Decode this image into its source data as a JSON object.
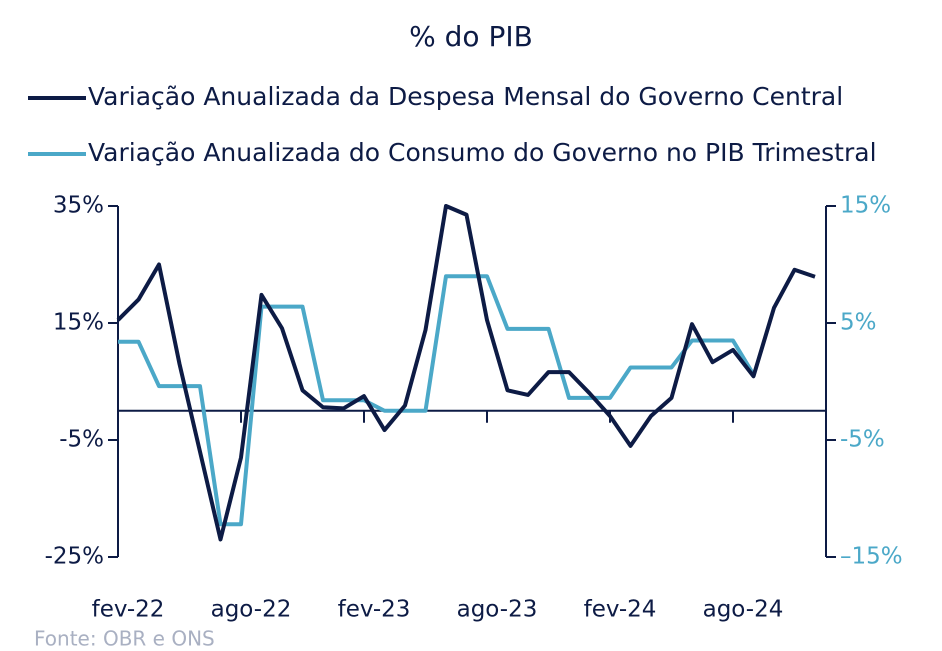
{
  "chart_data": {
    "type": "line",
    "title": "% do PIB",
    "source": "Fonte: OBR e ONS",
    "categories": [
      "fev-22",
      null,
      null,
      null,
      null,
      null,
      "ago-22",
      null,
      null,
      null,
      null,
      null,
      "fev-23",
      null,
      null,
      null,
      null,
      null,
      "ago-23",
      null,
      null,
      null,
      null,
      null,
      "fev-24",
      null,
      null,
      null,
      null,
      null,
      "ago-24",
      null,
      null,
      null,
      null
    ],
    "series": [
      {
        "name": "Variação Anualizada da Despesa Mensal do Governo Central",
        "color": "#0d1b45",
        "axis": "y",
        "values": [
          15.5,
          19,
          25,
          8,
          -7,
          -22,
          -8,
          19.8,
          14.1,
          3.5,
          0.6,
          0.4,
          2.5,
          -3.3,
          0.9,
          13.8,
          35,
          33.5,
          15.5,
          3.5,
          2.7,
          6.6,
          6.6,
          3,
          -0.9,
          -6,
          -0.9,
          2.2,
          14.8,
          8.3,
          10.4,
          5.9,
          17.6,
          24.1,
          22.9
        ]
      },
      {
        "name": "Variação Anualizada do Consumo do Governo no PIB Trimestral",
        "color": "#4ba8c8",
        "axis": "y2",
        "values": [
          3.4,
          3.4,
          -0.4,
          -0.4,
          -0.4,
          -12.2,
          -12.2,
          6.4,
          6.4,
          6.4,
          -1.6,
          -1.6,
          -1.6,
          -2.5,
          -2.5,
          -2.5,
          9.0,
          9.0,
          9.0,
          4.5,
          4.5,
          4.5,
          -1.4,
          -1.4,
          -1.4,
          1.2,
          1.2,
          1.2,
          3.5,
          3.5,
          3.5,
          0.6,
          null,
          null,
          null
        ]
      }
    ],
    "ylim": [
      -25,
      35
    ],
    "yticks": [
      {
        "value": -25,
        "label": "-25%"
      },
      {
        "value": -5,
        "label": "-5%"
      },
      {
        "value": 15,
        "label": "15%"
      },
      {
        "value": 35,
        "label": "35%"
      }
    ],
    "y2lim": [
      -15,
      15
    ],
    "y2ticks": [
      {
        "value": -15,
        "label": "–15%"
      },
      {
        "value": -5,
        "label": "-5%"
      },
      {
        "value": 5,
        "label": "5%"
      },
      {
        "value": 15,
        "label": "15%"
      }
    ],
    "y2color": "#4ba8c8"
  }
}
